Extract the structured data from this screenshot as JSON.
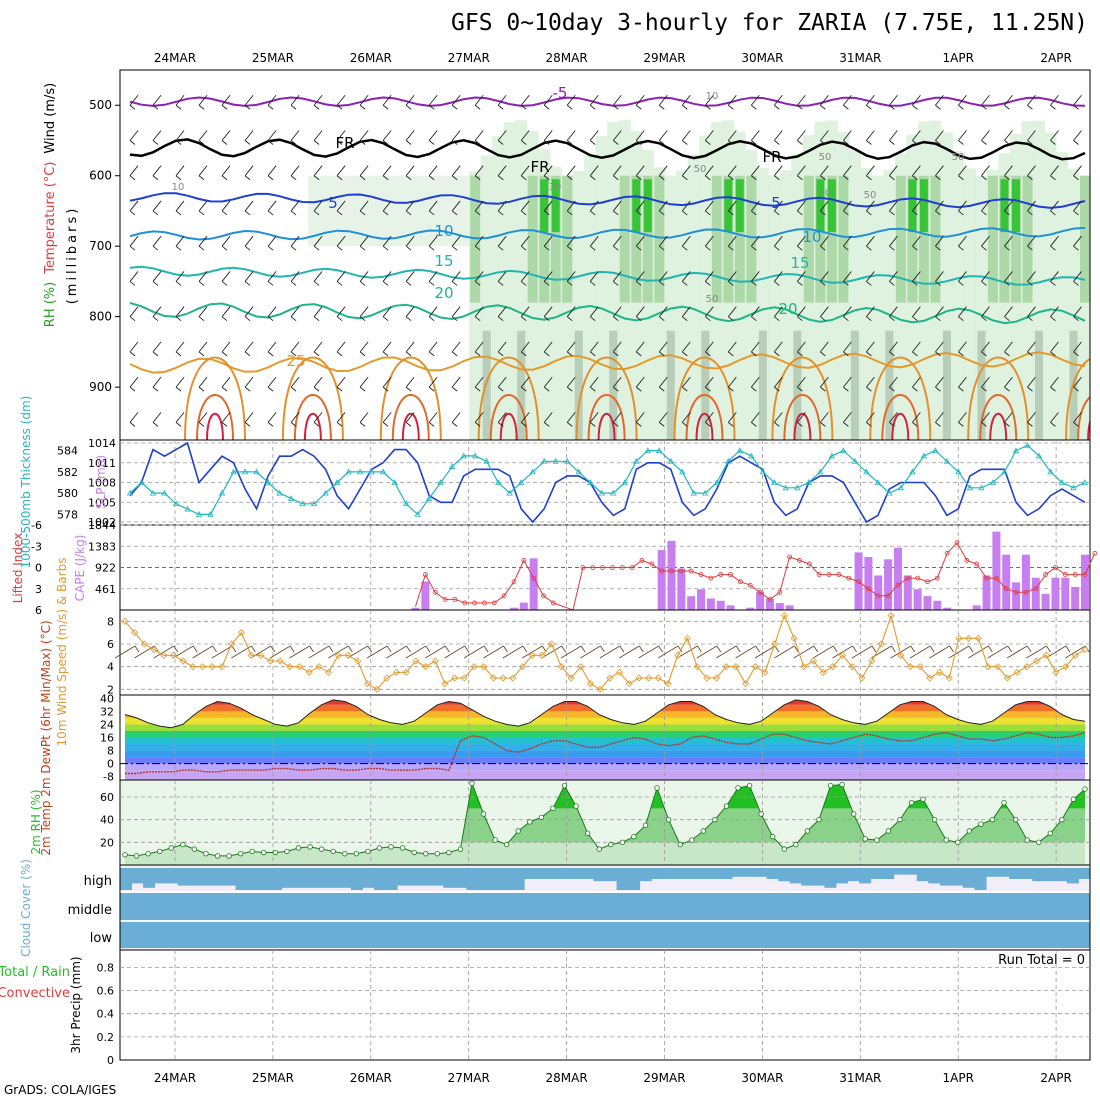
{
  "title": "GFS 0~10day 3-hourly for ZARIA (7.75E, 11.25N)",
  "credit": "GrADS: COLA/IGES",
  "colors": {
    "rh_green": "#22c022",
    "wind_purple": "#8c1fb5",
    "cape_bar": "#c77ef0",
    "slp_blue": "#1f3fd0",
    "thick_cyan": "#22b7c0",
    "lifted_red": "#e03a3a",
    "wind_orange": "#e39a2c",
    "cloud_blue": "#6aaed6",
    "cloud_bg": "#f2eef8"
  },
  "chart_data": [
    {
      "type": "heatmap",
      "name": "upper_air",
      "x_dates": [
        "24MAR",
        "25MAR",
        "26MAR",
        "27MAR",
        "28MAR",
        "29MAR",
        "30MAR",
        "31MAR",
        "1APR",
        "2APR"
      ],
      "yaxis_label": "(millibars)",
      "y_ticks": [
        500,
        600,
        700,
        800,
        900
      ],
      "ylim": [
        975,
        450
      ],
      "legend_labels": [
        "Wind (m/s)",
        "Temperature (°C)",
        "RH (%)"
      ],
      "contour_labels": [
        "-5",
        "FR",
        "FR",
        "FR",
        "5",
        "5",
        "10",
        "10",
        "15",
        "15",
        "20",
        "20",
        "25",
        "10",
        "50",
        "50",
        "50",
        "50",
        "50",
        "30",
        "50",
        "10"
      ],
      "isotherm_levels_c": [
        -5,
        0,
        5,
        10,
        15,
        20,
        25
      ],
      "isotherm_pressure_hpa": [
        [
          495,
          495
        ],
        [
          560,
          565
        ],
        [
          630,
          640
        ],
        [
          685,
          680
        ],
        [
          735,
          750
        ],
        [
          790,
          800
        ],
        [
          870,
          860
        ]
      ]
    },
    {
      "type": "line",
      "name": "slp_thickness",
      "left_label": "1000-500mb Thickness (dm)",
      "right_label": "SLP (mb)",
      "left_ticks": [
        578,
        580,
        582,
        584
      ],
      "right_ticks": [
        1002,
        1005,
        1008,
        1011,
        1014
      ],
      "series": [
        {
          "name": "SLP",
          "values": [
            1006,
            1008,
            1013,
            1012,
            1013,
            1014,
            1008,
            1010,
            1012,
            1011,
            1007,
            1004,
            1009,
            1012,
            1012,
            1013,
            1012,
            1010,
            1006,
            1004,
            1007,
            1010,
            1011,
            1013,
            1013,
            1011,
            1006,
            1005,
            1005,
            1009,
            1010,
            1010,
            1010,
            1009,
            1004,
            1002,
            1004,
            1008,
            1009,
            1009,
            1008,
            1005,
            1003,
            1004,
            1010,
            1011,
            1011,
            1010,
            1005,
            1003,
            1004,
            1007,
            1011,
            1012,
            1011,
            1010,
            1005,
            1003,
            1004,
            1008,
            1009,
            1009,
            1008,
            1005,
            1002,
            1003,
            1007,
            1008,
            1008,
            1008,
            1006,
            1003,
            1004,
            1009,
            1010,
            1010,
            1010,
            1005,
            1003,
            1004,
            1006,
            1007,
            1006,
            1005
          ]
        },
        {
          "name": "Thickness",
          "values": [
            580,
            581,
            580,
            580,
            579,
            578.5,
            578,
            578,
            580,
            582,
            582,
            582,
            581,
            580,
            579.5,
            579,
            579,
            580,
            581,
            582,
            582,
            582,
            582,
            581,
            579,
            578,
            579.5,
            581,
            582.5,
            583.5,
            583.5,
            583,
            581,
            580,
            581,
            582,
            583,
            583,
            583,
            582,
            581,
            580,
            580,
            581,
            583,
            584,
            584,
            583,
            582,
            580,
            580,
            581,
            583,
            584,
            583.5,
            582,
            581,
            580.5,
            580.5,
            581,
            582,
            583.5,
            584,
            583,
            582,
            581,
            580,
            580.5,
            582,
            583.5,
            584,
            583,
            582,
            580.5,
            580.5,
            581,
            582,
            584,
            584.5,
            583.5,
            582,
            581,
            580.5,
            581
          ]
        }
      ]
    },
    {
      "type": "bar",
      "name": "cape_lifted",
      "left_label": "Lifted Index",
      "right_label": "CAPE (J/kg)",
      "left_ticks": [
        -6,
        -3,
        0,
        3,
        6
      ],
      "right_ticks": [
        461,
        922,
        1383,
        1844
      ],
      "cape_values": [
        0,
        0,
        0,
        0,
        0,
        0,
        0,
        0,
        0,
        0,
        0,
        0,
        0,
        0,
        0,
        0,
        0,
        0,
        0,
        0,
        0,
        0,
        0,
        0,
        0,
        0,
        0,
        0,
        0,
        50,
        620,
        0,
        0,
        0,
        0,
        0,
        0,
        0,
        0,
        50,
        160,
        1120,
        0,
        0,
        0,
        0,
        0,
        0,
        0,
        0,
        0,
        0,
        0,
        0,
        1300,
        1500,
        900,
        300,
        450,
        250,
        200,
        100,
        0,
        50,
        400,
        250,
        150,
        100,
        0,
        0,
        0,
        0,
        0,
        0,
        1250,
        1150,
        750,
        1100,
        1350,
        750,
        450,
        300,
        200,
        50,
        0,
        0,
        100,
        750,
        1700,
        1200,
        600,
        1200,
        700,
        350,
        700,
        700,
        500,
        1200
      ],
      "lifted_values": [
        0,
        0,
        0,
        0,
        0,
        0,
        0,
        0,
        0,
        0,
        0,
        0,
        0,
        0,
        0,
        0,
        0,
        0,
        0,
        0,
        0,
        0,
        0,
        0,
        0,
        0,
        0,
        0,
        0,
        5.5,
        1,
        3.5,
        4.5,
        4.5,
        5,
        5,
        5,
        5,
        4,
        2,
        -1,
        1.5,
        4,
        5,
        5.5,
        6,
        0,
        0,
        0,
        0,
        0,
        0,
        -1,
        -0.5,
        0.5,
        0.5,
        0.5,
        0.5,
        1,
        1.5,
        1,
        1,
        2,
        2.5,
        3.5,
        4.5,
        3.5,
        -1.5,
        -1,
        -0.5,
        1,
        1,
        1,
        1.5,
        2,
        3,
        4,
        4,
        2.5,
        1.5,
        1.5,
        2,
        1.5,
        -2,
        -3.5,
        -1,
        -0.5,
        1.5,
        1.5,
        3,
        3.5,
        3.5,
        3,
        1,
        0,
        1,
        1,
        1,
        -2
      ]
    },
    {
      "type": "line",
      "name": "wind_10m",
      "label": "10m Wind Speed (m/s) & Barbs",
      "y_ticks": [
        2,
        4,
        6,
        8
      ],
      "values": [
        8,
        7,
        6,
        5.5,
        5,
        5,
        4.5,
        4,
        4,
        4,
        4,
        6,
        7,
        5,
        5,
        4.5,
        4.5,
        4,
        4,
        3.5,
        4,
        3.5,
        5,
        5,
        4.5,
        2.5,
        2,
        3,
        3.5,
        3.5,
        4.5,
        4,
        4.5,
        2.5,
        3,
        3,
        4,
        4,
        3,
        3,
        3,
        4,
        5,
        5,
        6,
        4,
        3,
        4,
        2.5,
        2,
        3,
        3.5,
        2.5,
        3,
        3,
        3,
        2.5,
        5,
        6.5,
        4,
        3,
        3,
        4,
        4,
        2.5,
        4,
        3.5,
        6,
        8.5,
        6.5,
        4,
        4.5,
        3.5,
        4,
        5,
        4,
        3,
        4.5,
        6,
        8.5,
        5,
        4,
        4,
        3,
        3.5,
        3,
        6.5,
        6.5,
        6.5,
        4,
        4,
        3,
        3.5,
        4,
        4.5,
        5,
        3.5,
        4,
        5,
        5.5
      ]
    },
    {
      "type": "area",
      "name": "temp_2m",
      "label": "2m Temp 2m DewPt (6hr Min/Max) (°C)",
      "y_ticks": [
        -8,
        0,
        8,
        16,
        24,
        32,
        40
      ],
      "temp_values": [
        30,
        28,
        25,
        23,
        22,
        24,
        30,
        35,
        38,
        37,
        34,
        30,
        27,
        24,
        23,
        25,
        31,
        36,
        39,
        38,
        35,
        30,
        27,
        25,
        24,
        26,
        31,
        36,
        38,
        37,
        33,
        29,
        26,
        24,
        23,
        25,
        30,
        35,
        38,
        38,
        35,
        30,
        27,
        25,
        24,
        26,
        31,
        36,
        38,
        38,
        35,
        30,
        27,
        25,
        24,
        26,
        31,
        36,
        39,
        38,
        35,
        30,
        27,
        25,
        24,
        26,
        31,
        36,
        38,
        38,
        35,
        30,
        27,
        25,
        24,
        26,
        31,
        36,
        38,
        38,
        35,
        30,
        27,
        26
      ],
      "dewpt_values": [
        -6,
        -6,
        -5,
        -5,
        -5,
        -4,
        -4,
        -5,
        -5,
        -4,
        -4,
        -4,
        -4,
        -3,
        -3,
        -4,
        -4,
        -3,
        -3,
        -4,
        -4,
        -3,
        -3,
        -4,
        -4,
        -4,
        -3,
        -3,
        -4,
        14,
        17,
        16,
        12,
        8,
        7,
        9,
        12,
        14,
        14,
        12,
        10,
        10,
        12,
        14,
        16,
        15,
        12,
        11,
        12,
        16,
        17,
        15,
        13,
        12,
        12,
        15,
        18,
        18,
        16,
        14,
        13,
        12,
        14,
        16,
        18,
        17,
        15,
        14,
        14,
        16,
        18,
        19,
        17,
        15,
        15,
        14,
        15,
        17,
        19,
        18,
        16,
        16,
        17,
        19
      ]
    },
    {
      "type": "area",
      "name": "rh_2m",
      "label": "2m RH (%)",
      "y_ticks": [
        20,
        40,
        60
      ],
      "values": [
        9,
        8,
        10,
        12,
        15,
        18,
        14,
        10,
        8,
        8,
        10,
        12,
        11,
        11,
        12,
        15,
        16,
        14,
        12,
        10,
        10,
        12,
        15,
        16,
        15,
        11,
        10,
        10,
        11,
        14,
        72,
        45,
        22,
        18,
        30,
        38,
        42,
        50,
        70,
        52,
        28,
        14,
        18,
        20,
        25,
        35,
        68,
        40,
        18,
        22,
        30,
        40,
        52,
        68,
        70,
        45,
        25,
        14,
        18,
        30,
        40,
        70,
        71,
        45,
        23,
        22,
        30,
        40,
        55,
        58,
        40,
        22,
        20,
        30,
        36,
        40,
        55,
        40,
        22,
        20,
        28,
        40,
        58,
        67
      ]
    },
    {
      "type": "bar",
      "name": "cloud_cover",
      "label": "Cloud Cover (%)",
      "levels": [
        "high",
        "middle",
        "low"
      ],
      "high_values": [
        100,
        70,
        90,
        70,
        70,
        80,
        80,
        80,
        80,
        80,
        100,
        100,
        100,
        100,
        90,
        90,
        90,
        90,
        90,
        90,
        100,
        90,
        100,
        100,
        80,
        80,
        80,
        80,
        90,
        90,
        100,
        100,
        100,
        100,
        100,
        50,
        50,
        50,
        50,
        50,
        50,
        60,
        60,
        100,
        100,
        60,
        50,
        50,
        50,
        50,
        50,
        50,
        50,
        40,
        40,
        40,
        50,
        60,
        70,
        80,
        80,
        90,
        70,
        60,
        70,
        50,
        50,
        30,
        30,
        60,
        70,
        80,
        80,
        90,
        100,
        40,
        40,
        50,
        50,
        60,
        60,
        60,
        70,
        50
      ],
      "middle_values": [
        100,
        100,
        100,
        100,
        100,
        100,
        100,
        100,
        100,
        100,
        100,
        100,
        100,
        100,
        100,
        100,
        100,
        100,
        100,
        100,
        100,
        100,
        100,
        100,
        100,
        100,
        100,
        100,
        100,
        100,
        100,
        100,
        100,
        100,
        100,
        100,
        100,
        100,
        100,
        100,
        100,
        100,
        100,
        100,
        100,
        100,
        100,
        100,
        100,
        100,
        100,
        100,
        100,
        100,
        100,
        100,
        100,
        100,
        100,
        100,
        100,
        100,
        100,
        100,
        100,
        100,
        100,
        100,
        100,
        100,
        100,
        100,
        100,
        100,
        100,
        100,
        100,
        100,
        100,
        100,
        100,
        100,
        100,
        100
      ],
      "low_values": [
        100,
        100,
        100,
        100,
        100,
        100,
        100,
        100,
        100,
        100,
        100,
        100,
        100,
        100,
        100,
        100,
        100,
        100,
        100,
        100,
        100,
        100,
        100,
        100,
        100,
        100,
        100,
        100,
        100,
        100,
        100,
        100,
        100,
        100,
        100,
        100,
        100,
        100,
        100,
        100,
        100,
        100,
        100,
        100,
        100,
        100,
        100,
        100,
        100,
        100,
        100,
        100,
        100,
        100,
        100,
        100,
        100,
        100,
        100,
        100,
        100,
        100,
        100,
        100,
        100,
        100,
        100,
        100,
        100,
        100,
        100,
        100,
        100,
        100,
        100,
        100,
        100,
        100,
        100,
        100,
        100,
        100,
        100,
        100
      ]
    },
    {
      "type": "bar",
      "name": "precip_3hr",
      "label": "3hr Precip (mm)",
      "legend_labels": [
        "Total / Rain",
        "Convective"
      ],
      "y_ticks": [
        0,
        0.2,
        0.4,
        0.6,
        0.8
      ],
      "ylim": [
        0,
        0.95
      ],
      "run_total": "Run Total = 0",
      "values": [
        0,
        0,
        0,
        0,
        0,
        0,
        0,
        0,
        0,
        0,
        0,
        0,
        0,
        0,
        0,
        0,
        0,
        0,
        0,
        0,
        0,
        0,
        0,
        0,
        0,
        0,
        0,
        0,
        0,
        0,
        0,
        0,
        0,
        0,
        0,
        0,
        0,
        0,
        0,
        0,
        0,
        0,
        0,
        0,
        0,
        0,
        0,
        0,
        0,
        0,
        0,
        0,
        0,
        0,
        0,
        0,
        0,
        0,
        0,
        0,
        0,
        0,
        0,
        0,
        0,
        0,
        0,
        0,
        0,
        0,
        0,
        0,
        0,
        0,
        0,
        0,
        0,
        0,
        0,
        0,
        0,
        0,
        0,
        0
      ]
    }
  ]
}
